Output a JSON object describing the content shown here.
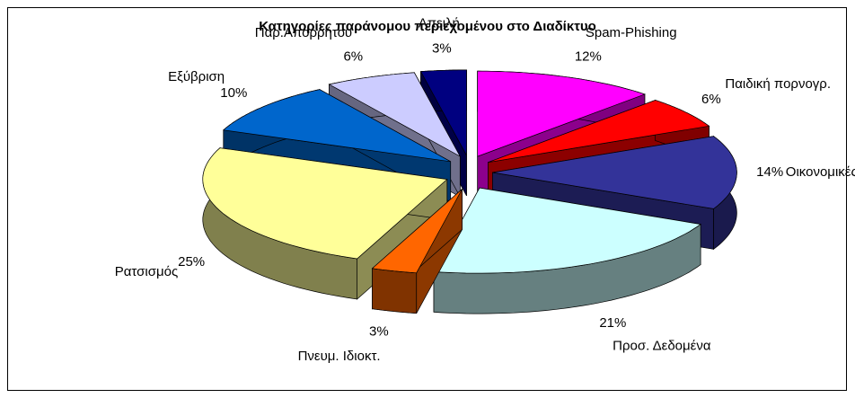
{
  "chart_data": {
    "type": "pie3d",
    "title": "Κατηγορίες παράνομου περιεχομένου στο Διαδίκτυο",
    "categories": [
      "Spam-Phishing",
      "Παιδική πορνογρ.",
      "Οικονομικές απάτες",
      "Προσ. Δεδομένα",
      "Πνευμ. Ιδιοκτ.",
      "Ρατσισμός",
      "Εξύβριση",
      "Παρ.Απορρήτου",
      "Απειλή"
    ],
    "values": [
      12,
      6,
      14,
      21,
      3,
      25,
      10,
      6,
      3
    ],
    "value_labels": [
      "12%",
      "6%",
      "14%",
      "21%",
      "3%",
      "25%",
      "10%",
      "6%",
      "3%"
    ],
    "colors": [
      "#ff00ff",
      "#ff0000",
      "#333399",
      "#ccffff",
      "#ff6600",
      "#ffff99",
      "#0066cc",
      "#ccccff",
      "#000080"
    ]
  }
}
